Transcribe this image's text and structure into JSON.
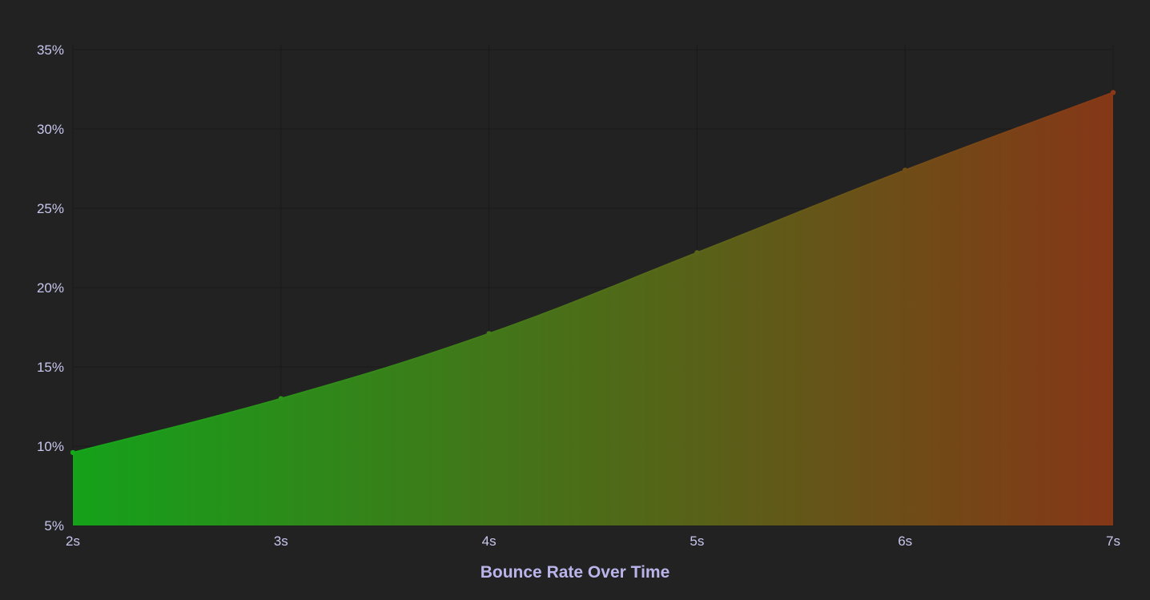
{
  "chart_data": {
    "type": "area",
    "xlabel": "Bounce Rate Over Time",
    "ylabel": "",
    "categories": [
      "2s",
      "3s",
      "4s",
      "5s",
      "6s",
      "7s"
    ],
    "series": [
      {
        "values": [
          9.6,
          13.0,
          17.1,
          22.2,
          27.4,
          32.3
        ]
      }
    ],
    "ylim": [
      5,
      35
    ],
    "yticks": [
      5,
      10,
      15,
      20,
      25,
      30,
      35
    ],
    "ytick_labels": [
      "5%",
      "10%",
      "15%",
      "20%",
      "25%",
      "30%",
      "35%"
    ],
    "grid": true,
    "legend": "none",
    "colors": {
      "background": "#222222",
      "gradient_start": "#14a81a",
      "gradient_end": "#8a3816",
      "label": "#c8c6ee",
      "title": "#b9b4ea"
    }
  }
}
